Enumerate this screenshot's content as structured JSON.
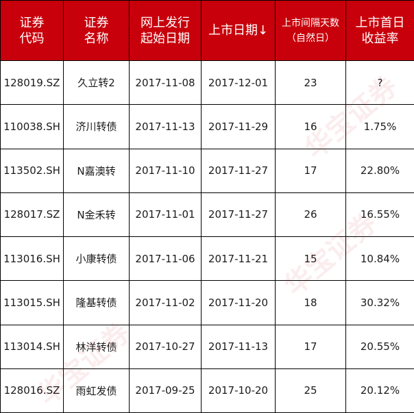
{
  "table": {
    "headers": [
      {
        "line1": "证券",
        "line2": "代码"
      },
      {
        "line1": "证券",
        "line2": "名称"
      },
      {
        "line1": "网上发行",
        "line2": "起始日期"
      },
      {
        "line1": "上市日期↓",
        "line2": ""
      },
      {
        "line1": "上市间隔天数",
        "line2": "（自然日）"
      },
      {
        "line1": "上市首日",
        "line2": "收益率"
      }
    ],
    "rows": [
      [
        "128019.SZ",
        "久立转2",
        "2017-11-08",
        "2017-12-01",
        "23",
        "?"
      ],
      [
        "110038.SH",
        "济川转债",
        "2017-11-13",
        "2017-11-29",
        "16",
        "1.75%"
      ],
      [
        "113502.SH",
        "N嘉澳转",
        "2017-11-10",
        "2017-11-27",
        "17",
        "22.80%"
      ],
      [
        "128017.SZ",
        "N金禾转",
        "2017-11-01",
        "2017-11-27",
        "26",
        "16.55%"
      ],
      [
        "113016.SH",
        "小康转债",
        "2017-11-06",
        "2017-11-21",
        "15",
        "10.84%"
      ],
      [
        "113015.SH",
        "隆基转债",
        "2017-11-02",
        "2017-11-20",
        "18",
        "30.32%"
      ],
      [
        "113014.SH",
        "林洋转债",
        "2017-10-27",
        "2017-11-13",
        "17",
        "20.55%"
      ],
      [
        "128016.SZ",
        "雨虹发债",
        "2017-09-25",
        "2017-10-20",
        "25",
        "20.12%"
      ]
    ]
  },
  "watermark": {
    "text": "华宝证券"
  },
  "colors": {
    "header_bg": "#c8000b",
    "header_text": "#ffffff",
    "body_text": "#1a1a1a",
    "border": "#000000"
  }
}
